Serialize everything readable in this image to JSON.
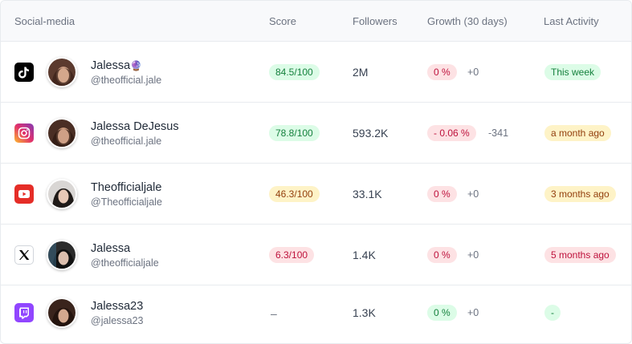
{
  "columns": {
    "social": "Social-media",
    "score": "Score",
    "followers": "Followers",
    "growth": "Growth (30 days)",
    "activity": "Last Activity"
  },
  "rows": [
    {
      "platform": "tiktok-icon",
      "name": "Jalessa",
      "name_emoji": "🔮",
      "handle": "@theofficial.jale",
      "score": "84.5/100",
      "score_tone": "green",
      "followers": "2M",
      "growth_pct": "0 %",
      "growth_tone": "red",
      "growth_delta": "+0",
      "activity": "This week",
      "activity_tone": "green"
    },
    {
      "platform": "instagram-icon",
      "name": "Jalessa DeJesus",
      "handle": "@theofficial.jale",
      "score": "78.8/100",
      "score_tone": "green",
      "followers": "593.2K",
      "growth_pct": "- 0.06 %",
      "growth_tone": "red",
      "growth_delta": "-341",
      "activity": "a month ago",
      "activity_tone": "yellow"
    },
    {
      "platform": "youtube-icon",
      "name": "Theofficialjale",
      "handle": "@Theofficialjale",
      "score": "46.3/100",
      "score_tone": "yellow",
      "followers": "33.1K",
      "growth_pct": "0 %",
      "growth_tone": "red",
      "growth_delta": "+0",
      "activity": "3 months ago",
      "activity_tone": "yellow"
    },
    {
      "platform": "x-icon",
      "name": "Jalessa",
      "handle": "@theofficialjale",
      "score": "6.3/100",
      "score_tone": "red",
      "followers": "1.4K",
      "growth_pct": "0 %",
      "growth_tone": "red",
      "growth_delta": "+0",
      "activity": "5 months ago",
      "activity_tone": "red"
    },
    {
      "platform": "twitch-icon",
      "name": "Jalessa23",
      "handle": "@jalessa23",
      "score": "–",
      "score_tone": "none",
      "followers": "1.3K",
      "growth_pct": "0 %",
      "growth_tone": "green",
      "growth_delta": "+0",
      "activity": "-",
      "activity_tone": "green"
    }
  ],
  "colors": {
    "green_bg": "#dcfce7",
    "yellow_bg": "#fef3c7",
    "red_bg": "#fde2e4",
    "instagram": "#d6249f",
    "youtube": "#e52d27",
    "twitch": "#9146ff"
  }
}
